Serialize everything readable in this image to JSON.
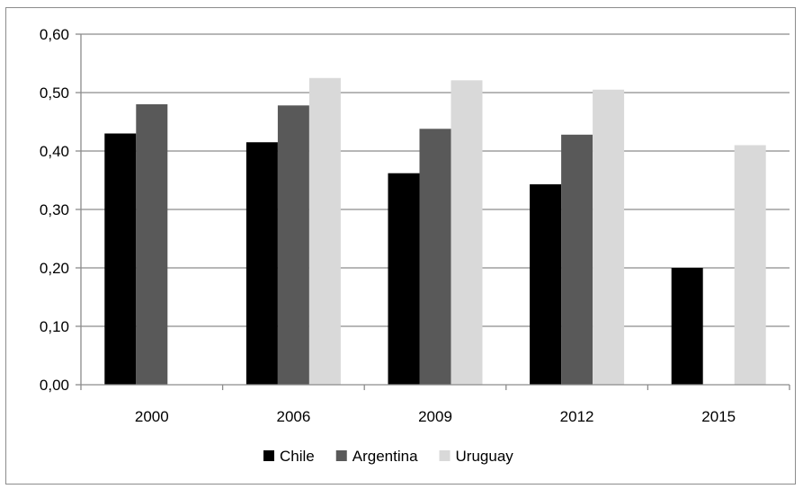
{
  "chart_data": {
    "type": "bar",
    "categories": [
      "2000",
      "2006",
      "2009",
      "2012",
      "2015"
    ],
    "series": [
      {
        "name": "Chile",
        "color": "#000000",
        "values": [
          0.43,
          0.415,
          0.362,
          0.343,
          0.2
        ]
      },
      {
        "name": "Argentina",
        "color": "#595959",
        "values": [
          0.48,
          0.478,
          0.438,
          0.428,
          null
        ]
      },
      {
        "name": "Uruguay",
        "color": "#d9d9d9",
        "values": [
          null,
          0.525,
          0.521,
          0.505,
          0.41
        ]
      }
    ],
    "y_ticks": [
      "0,00",
      "0,10",
      "0,20",
      "0,30",
      "0,40",
      "0,50",
      "0,60"
    ],
    "ylim": [
      0,
      0.6
    ],
    "grid": true,
    "legend_position": "bottom"
  }
}
